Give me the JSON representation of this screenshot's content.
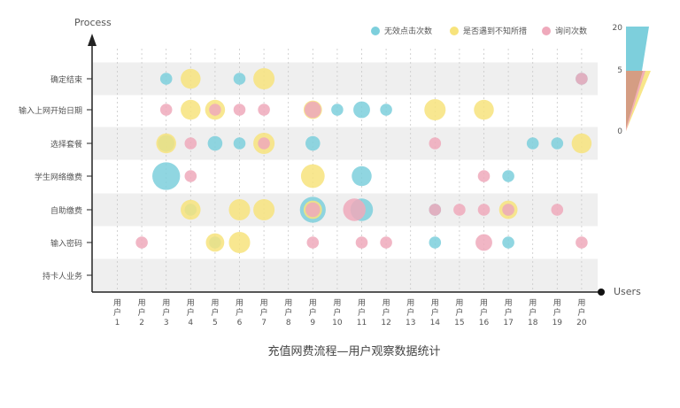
{
  "chart_data": {
    "type": "scatter",
    "title": "充值网费流程—用户观察数据统计",
    "xlabel": "Users",
    "ylabel": "Process",
    "categories_y": [
      "确定结束",
      "输入上网开始日期",
      "选择套餐",
      "学生网络缴费",
      "自助缴费",
      "输入密码",
      "持卡人业务"
    ],
    "categories_x": [
      "用户1",
      "用户2",
      "用户3",
      "用户4",
      "用户5",
      "用户6",
      "用户7",
      "用户8",
      "用户9",
      "用户10",
      "用户11",
      "用户12",
      "用户13",
      "用户14",
      "用户15",
      "用户16",
      "用户17",
      "用户18",
      "用户19",
      "用户20"
    ],
    "legend": [
      {
        "name": "无效点击次数",
        "color": "#7dcfdc"
      },
      {
        "name": "是否遇到不知所措",
        "color": "#f7e37c"
      },
      {
        "name": "询问次数",
        "color": "#efa9bb"
      }
    ],
    "size_legend": {
      "ticks": [
        20,
        5,
        0
      ]
    },
    "series": [
      {
        "name": "无效点击次数",
        "color": "#7dcfdc",
        "points": [
          {
            "x": 3,
            "y": "确定结束",
            "size": 1
          },
          {
            "x": 6,
            "y": "确定结束",
            "size": 1
          },
          {
            "x": 20,
            "y": "确定结束",
            "size": 1
          },
          {
            "x": 9,
            "y": "输入上网开始日期",
            "size": 2
          },
          {
            "x": 10,
            "y": "输入上网开始日期",
            "size": 1
          },
          {
            "x": 11,
            "y": "输入上网开始日期",
            "size": 3
          },
          {
            "x": 12,
            "y": "输入上网开始日期",
            "size": 1
          },
          {
            "x": 3,
            "y": "选择套餐",
            "size": 3
          },
          {
            "x": 5,
            "y": "选择套餐",
            "size": 2
          },
          {
            "x": 6,
            "y": "选择套餐",
            "size": 1
          },
          {
            "x": 9,
            "y": "选择套餐",
            "size": 2
          },
          {
            "x": 18,
            "y": "选择套餐",
            "size": 1
          },
          {
            "x": 19,
            "y": "选择套餐",
            "size": 1
          },
          {
            "x": 3,
            "y": "学生网络缴费",
            "size": 12
          },
          {
            "x": 11,
            "y": "学生网络缴费",
            "size": 5
          },
          {
            "x": 17,
            "y": "学生网络缴费",
            "size": 1
          },
          {
            "x": 4,
            "y": "自助缴费",
            "size": 1
          },
          {
            "x": 9,
            "y": "自助缴费",
            "size": 10
          },
          {
            "x": 11,
            "y": "自助缴费",
            "size": 7
          },
          {
            "x": 14,
            "y": "自助缴费",
            "size": 1
          },
          {
            "x": 17,
            "y": "自助缴费",
            "size": 1
          },
          {
            "x": 14,
            "y": "输入密码",
            "size": 1
          },
          {
            "x": 17,
            "y": "输入密码",
            "size": 1
          },
          {
            "x": 5,
            "y": "输入密码",
            "size": 1
          }
        ]
      },
      {
        "name": "是否遇到不知所措",
        "color": "#f7e37c",
        "points": [
          {
            "x": 4,
            "y": "确定结束",
            "size": 5
          },
          {
            "x": 7,
            "y": "确定结束",
            "size": 6
          },
          {
            "x": 4,
            "y": "输入上网开始日期",
            "size": 5
          },
          {
            "x": 5,
            "y": "输入上网开始日期",
            "size": 5
          },
          {
            "x": 9,
            "y": "输入上网开始日期",
            "size": 4
          },
          {
            "x": 14,
            "y": "输入上网开始日期",
            "size": 6
          },
          {
            "x": 16,
            "y": "输入上网开始日期",
            "size": 5
          },
          {
            "x": 3,
            "y": "选择套餐",
            "size": 5
          },
          {
            "x": 7,
            "y": "选择套餐",
            "size": 6
          },
          {
            "x": 20,
            "y": "选择套餐",
            "size": 5
          },
          {
            "x": 9,
            "y": "学生网络缴费",
            "size": 8
          },
          {
            "x": 4,
            "y": "自助缴费",
            "size": 5
          },
          {
            "x": 6,
            "y": "自助缴费",
            "size": 6
          },
          {
            "x": 7,
            "y": "自助缴费",
            "size": 6
          },
          {
            "x": 9,
            "y": "自助缴费",
            "size": 4
          },
          {
            "x": 17,
            "y": "自助缴费",
            "size": 4
          },
          {
            "x": 5,
            "y": "输入密码",
            "size": 4
          },
          {
            "x": 6,
            "y": "输入密码",
            "size": 6
          }
        ]
      },
      {
        "name": "询问次数",
        "color": "#efa9bb",
        "points": [
          {
            "x": 20,
            "y": "确定结束",
            "size": 1
          },
          {
            "x": 3,
            "y": "输入上网开始日期",
            "size": 1
          },
          {
            "x": 5,
            "y": "输入上网开始日期",
            "size": 1
          },
          {
            "x": 6,
            "y": "输入上网开始日期",
            "size": 1
          },
          {
            "x": 7,
            "y": "输入上网开始日期",
            "size": 1
          },
          {
            "x": 9,
            "y": "输入上网开始日期",
            "size": 3
          },
          {
            "x": 4,
            "y": "选择套餐",
            "size": 1
          },
          {
            "x": 7,
            "y": "选择套餐",
            "size": 1
          },
          {
            "x": 14,
            "y": "选择套餐",
            "size": 1
          },
          {
            "x": 4,
            "y": "学生网络缴费",
            "size": 1
          },
          {
            "x": 16,
            "y": "学生网络缴费",
            "size": 1
          },
          {
            "x": 9,
            "y": "自助缴费",
            "size": 2
          },
          {
            "x": 10.7,
            "y": "自助缴费",
            "size": 7
          },
          {
            "x": 14,
            "y": "自助缴费",
            "size": 1
          },
          {
            "x": 15,
            "y": "自助缴费",
            "size": 1
          },
          {
            "x": 16,
            "y": "自助缴费",
            "size": 1
          },
          {
            "x": 17,
            "y": "自助缴费",
            "size": 1
          },
          {
            "x": 19,
            "y": "自助缴费",
            "size": 1
          },
          {
            "x": 2,
            "y": "输入密码",
            "size": 1
          },
          {
            "x": 9,
            "y": "输入密码",
            "size": 1
          },
          {
            "x": 11,
            "y": "输入密码",
            "size": 1
          },
          {
            "x": 12,
            "y": "输入密码",
            "size": 1
          },
          {
            "x": 16,
            "y": "输入密码",
            "size": 3
          },
          {
            "x": 20,
            "y": "输入密码",
            "size": 1
          }
        ]
      }
    ]
  }
}
